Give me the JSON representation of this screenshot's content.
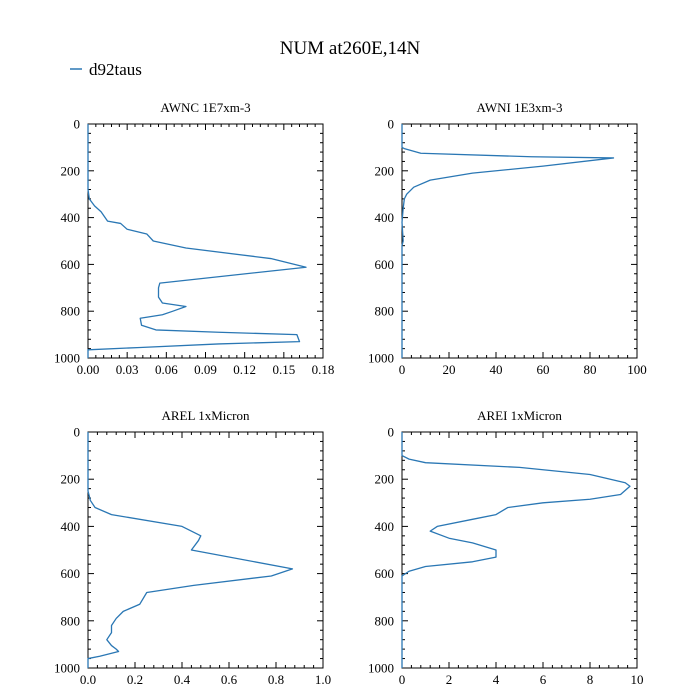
{
  "figure": {
    "title": "NUM at260E,14N",
    "legend": {
      "label": "d92taus",
      "placement": "top-left"
    },
    "line_color": "#2a77b4",
    "axis_color": "#000000"
  },
  "chart_data": [
    {
      "type": "line",
      "title": "AWNC  1E7xm-3",
      "xlabel": "",
      "ylabel": "",
      "xlim": [
        0,
        0.18
      ],
      "ylim": [
        1000,
        0
      ],
      "y_inverted": true,
      "xticks": [
        0,
        0.03,
        0.06,
        0.09,
        0.12,
        0.15,
        0.18
      ],
      "xtick_labels": [
        "0.00",
        "0.03",
        "0.06",
        "0.09",
        "0.12",
        "0.15",
        "0.18"
      ],
      "yticks": [
        0,
        200,
        400,
        600,
        800,
        1000
      ],
      "ytick_labels": [
        "0",
        "200",
        "400",
        "600",
        "800",
        "1000"
      ],
      "grid": false,
      "series": [
        {
          "name": "d92taus",
          "points": [
            [
              0,
              0
            ],
            [
              0,
              280
            ],
            [
              0.001,
              320
            ],
            [
              0.005,
              350
            ],
            [
              0.01,
              375
            ],
            [
              0.015,
              415
            ],
            [
              0.025,
              425
            ],
            [
              0.03,
              450
            ],
            [
              0.045,
              470
            ],
            [
              0.05,
              500
            ],
            [
              0.075,
              530
            ],
            [
              0.14,
              575
            ],
            [
              0.167,
              612
            ],
            [
              0.055,
              680
            ],
            [
              0.054,
              700
            ],
            [
              0.054,
              740
            ],
            [
              0.057,
              765
            ],
            [
              0.075,
              780
            ],
            [
              0.065,
              800
            ],
            [
              0.057,
              815
            ],
            [
              0.04,
              830
            ],
            [
              0.041,
              860
            ],
            [
              0.052,
              880
            ],
            [
              0.1,
              890
            ],
            [
              0.16,
              900
            ],
            [
              0.162,
              930
            ],
            [
              0.1,
              940
            ],
            [
              0.04,
              955
            ],
            [
              0,
              965
            ],
            [
              0,
              1000
            ]
          ]
        }
      ]
    },
    {
      "type": "line",
      "title": "AWNI  1E3xm-3",
      "xlabel": "",
      "ylabel": "",
      "xlim": [
        0,
        100
      ],
      "ylim": [
        1000,
        0
      ],
      "y_inverted": true,
      "xticks": [
        0,
        20,
        40,
        60,
        80,
        100
      ],
      "xtick_labels": [
        "0",
        "20",
        "40",
        "60",
        "80",
        "100"
      ],
      "yticks": [
        0,
        200,
        400,
        600,
        800,
        1000
      ],
      "ytick_labels": [
        "0",
        "200",
        "400",
        "600",
        "800",
        "1000"
      ],
      "grid": false,
      "series": [
        {
          "name": "d92taus",
          "points": [
            [
              0,
              0
            ],
            [
              0,
              100
            ],
            [
              1,
              105
            ],
            [
              8,
              125
            ],
            [
              55,
              140
            ],
            [
              90,
              145
            ],
            [
              60,
              180
            ],
            [
              30,
              210
            ],
            [
              12,
              240
            ],
            [
              5,
              270
            ],
            [
              2,
              300
            ],
            [
              1,
              320
            ],
            [
              0.5,
              360
            ],
            [
              0,
              420
            ],
            [
              0.5,
              500
            ],
            [
              0,
              520
            ],
            [
              0,
              1000
            ]
          ]
        }
      ]
    },
    {
      "type": "line",
      "title": "AREL  1xMicron",
      "xlabel": "",
      "ylabel": "",
      "xlim": [
        0,
        1.0
      ],
      "ylim": [
        1000,
        0
      ],
      "y_inverted": true,
      "xticks": [
        0,
        0.2,
        0.4,
        0.6,
        0.8,
        1.0
      ],
      "xtick_labels": [
        "0.0",
        "0.2",
        "0.4",
        "0.6",
        "0.8",
        "1.0"
      ],
      "yticks": [
        0,
        200,
        400,
        600,
        800,
        1000
      ],
      "ytick_labels": [
        "0",
        "200",
        "400",
        "600",
        "800",
        "1000"
      ],
      "grid": false,
      "series": [
        {
          "name": "d92taus",
          "points": [
            [
              0,
              0
            ],
            [
              0,
              250
            ],
            [
              0.01,
              290
            ],
            [
              0.03,
              320
            ],
            [
              0.1,
              350
            ],
            [
              0.4,
              400
            ],
            [
              0.48,
              440
            ],
            [
              0.47,
              460
            ],
            [
              0.44,
              500
            ],
            [
              0.87,
              580
            ],
            [
              0.78,
              610
            ],
            [
              0.45,
              650
            ],
            [
              0.25,
              680
            ],
            [
              0.22,
              730
            ],
            [
              0.15,
              760
            ],
            [
              0.12,
              790
            ],
            [
              0.1,
              820
            ],
            [
              0.1,
              850
            ],
            [
              0.08,
              880
            ],
            [
              0.1,
              905
            ],
            [
              0.12,
              920
            ],
            [
              0.13,
              930
            ],
            [
              0.05,
              950
            ],
            [
              0,
              960
            ],
            [
              0,
              1000
            ]
          ]
        }
      ]
    },
    {
      "type": "line",
      "title": "AREI  1xMicron",
      "xlabel": "",
      "ylabel": "",
      "xlim": [
        0,
        10
      ],
      "ylim": [
        1000,
        0
      ],
      "y_inverted": true,
      "xticks": [
        0,
        2,
        4,
        6,
        8,
        10
      ],
      "xtick_labels": [
        "0",
        "2",
        "4",
        "6",
        "8",
        "10"
      ],
      "yticks": [
        0,
        200,
        400,
        600,
        800,
        1000
      ],
      "ytick_labels": [
        "0",
        "200",
        "400",
        "600",
        "800",
        "1000"
      ],
      "grid": false,
      "series": [
        {
          "name": "d92taus",
          "points": [
            [
              0,
              0
            ],
            [
              0,
              100
            ],
            [
              0.3,
              115
            ],
            [
              1,
              130
            ],
            [
              5,
              150
            ],
            [
              8,
              180
            ],
            [
              9.5,
              215
            ],
            [
              9.7,
              230
            ],
            [
              9.3,
              265
            ],
            [
              8,
              285
            ],
            [
              6,
              300
            ],
            [
              4.5,
              320
            ],
            [
              4,
              350
            ],
            [
              3,
              370
            ],
            [
              1.5,
              400
            ],
            [
              1.2,
              420
            ],
            [
              2,
              450
            ],
            [
              3,
              470
            ],
            [
              4,
              500
            ],
            [
              4,
              530
            ],
            [
              3,
              550
            ],
            [
              1,
              570
            ],
            [
              0.3,
              590
            ],
            [
              0,
              610
            ],
            [
              0,
              1000
            ]
          ]
        }
      ]
    }
  ]
}
